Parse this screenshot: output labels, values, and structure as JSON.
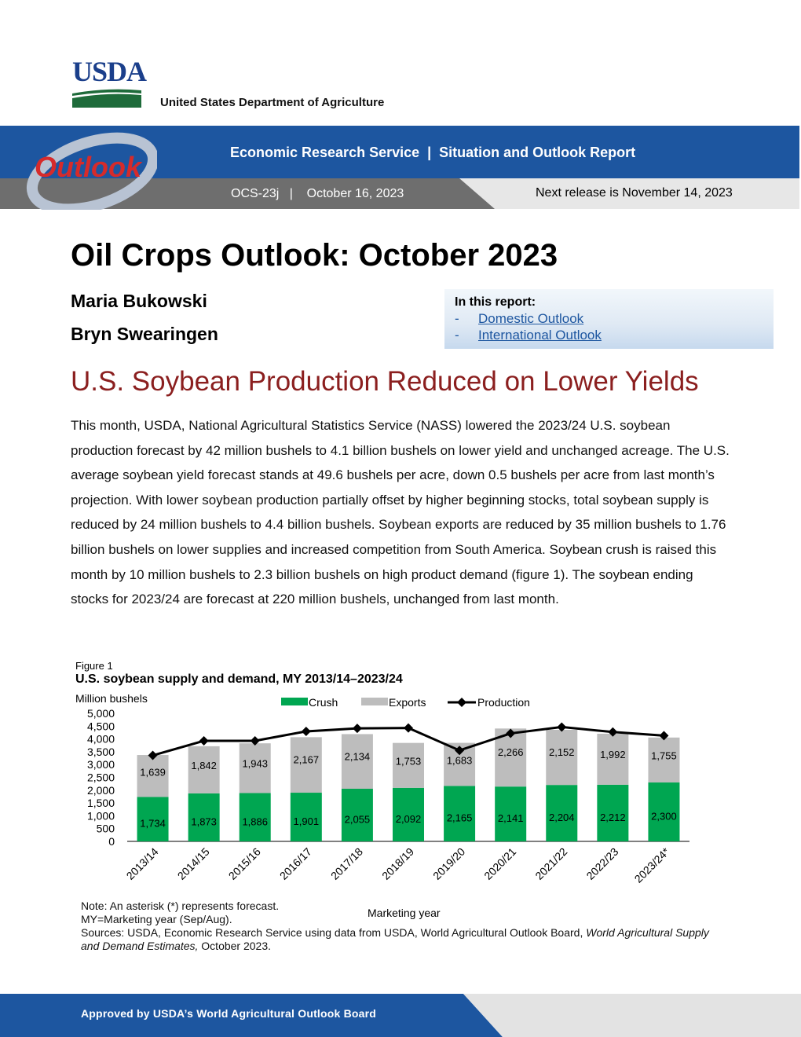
{
  "header": {
    "logo_text": "USDA",
    "department": "United States Department of Agriculture",
    "outlook_logo_text": "Outlook",
    "service_line": "Economic Research Service  |  Situation and Outlook Report",
    "issue_line": "OCS-23j   |    October 16, 2023",
    "next_release": "Next release is November 14, 2023"
  },
  "report": {
    "title": "Oil Crops Outlook: October 2023",
    "authors": [
      "Maria Bukowski",
      "Bryn Swearingen"
    ]
  },
  "toc": {
    "heading": "In this report:",
    "items": [
      {
        "dash": "-",
        "label": "Domestic Outlook"
      },
      {
        "dash": "-",
        "label": "International Outlook"
      }
    ]
  },
  "section": {
    "headline": "U.S. Soybean Production Reduced on Lower Yields",
    "paragraph": "This month, USDA, National Agricultural Statistics Service (NASS) lowered the 2023/24 U.S. soybean production forecast by 42 million bushels to 4.1 billion bushels on lower yield and unchanged acreage. The U.S. average soybean yield forecast stands at 49.6 bushels per acre, down 0.5 bushels per acre from last month’s projection. With lower soybean production partially offset by higher beginning stocks, total soybean supply is reduced by 24 million bushels to 4.4 billion bushels. Soybean exports are reduced by 35 million bushels to 1.76 billion bushels on lower supplies and increased competition from South America. Soybean crush is raised this month by 10 million bushels to 2.3 billion bushels on high product demand (figure 1). The soybean ending stocks for 2023/24 are forecast at 220 million bushels, unchanged from last month."
  },
  "figure": {
    "label": "Figure 1",
    "title": "U.S. soybean supply and demand, MY 2013/14–2023/24"
  },
  "chart_data": {
    "type": "bar",
    "stacked": true,
    "ylabel": "Million bushels",
    "xlabel": "Marketing year",
    "ylim": [
      0,
      5000
    ],
    "yticks": [
      "0",
      "500",
      "1,000",
      "1,500",
      "2,000",
      "2,500",
      "3,000",
      "3,500",
      "4,000",
      "4,500",
      "5,000"
    ],
    "ytick_values": [
      0,
      500,
      1000,
      1500,
      2000,
      2500,
      3000,
      3500,
      4000,
      4500,
      5000
    ],
    "legend_position": "top",
    "categories": [
      "2013/14",
      "2014/15",
      "2015/16",
      "2016/17",
      "2017/18",
      "2018/19",
      "2019/20",
      "2020/21",
      "2021/22",
      "2022/23",
      "2023/24*"
    ],
    "series": [
      {
        "name": "Crush",
        "kind": "bar",
        "color": "#00a651",
        "values": [
          1734,
          1873,
          1886,
          1901,
          2055,
          2092,
          2165,
          2141,
          2204,
          2212,
          2300
        ],
        "labels": [
          "1,734",
          "1,873",
          "1,886",
          "1,901",
          "2,055",
          "2,092",
          "2,165",
          "2,141",
          "2,204",
          "2,212",
          "2,300"
        ]
      },
      {
        "name": "Exports",
        "kind": "bar",
        "color": "#bdbdbd",
        "values": [
          1639,
          1842,
          1943,
          2167,
          2134,
          1753,
          1683,
          2266,
          2152,
          1992,
          1755
        ],
        "labels": [
          "1,639",
          "1,842",
          "1,943",
          "2,167",
          "2,134",
          "1,753",
          "1,683",
          "2,266",
          "2,152",
          "1,992",
          "1,755"
        ]
      },
      {
        "name": "Production",
        "kind": "line",
        "color": "#000000",
        "values": [
          3358,
          3927,
          3926,
          4296,
          4412,
          4428,
          3552,
          4216,
          4465,
          4270,
          4129
        ]
      }
    ]
  },
  "notes": {
    "note1": "Note: An asterisk (*) represents forecast.",
    "note2": "MY=Marketing year (Sep/Aug).",
    "sources_prefix": "Sources: USDA, Economic Research Service using data from USDA, World Agricultural Outlook Board, ",
    "sources_italic": "World Agricultural Supply and Demand Estimates,",
    "sources_suffix": " October 2023."
  },
  "footer": {
    "text": "Approved by USDA’s World Agricultural Outlook Board"
  },
  "colors": {
    "banner_blue": "#1d56a0",
    "headline_red": "#8b1f1f",
    "crush_green": "#00a651",
    "exports_gray": "#bdbdbd"
  }
}
